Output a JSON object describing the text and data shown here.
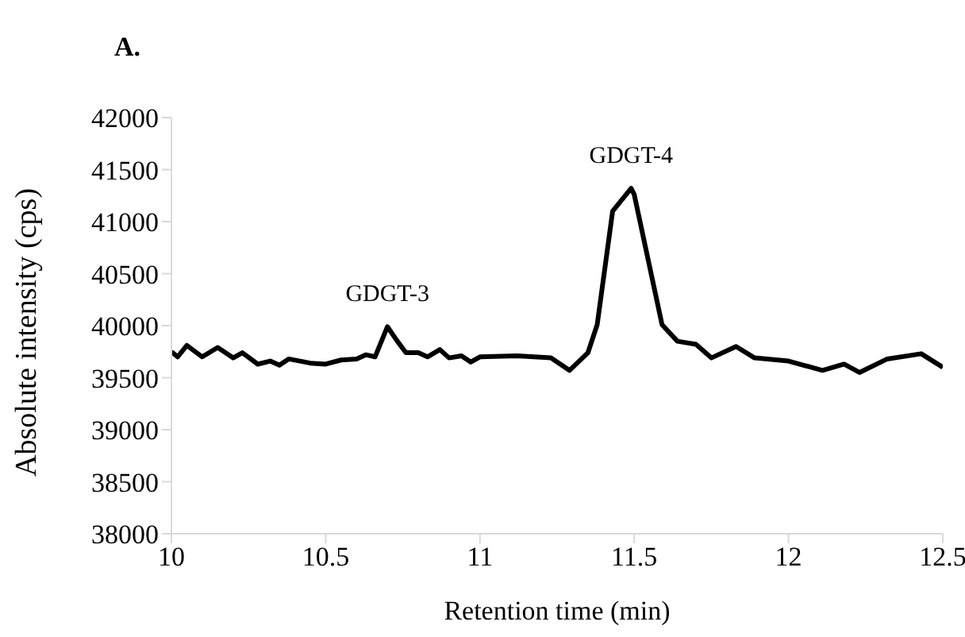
{
  "chart_data": {
    "type": "line",
    "title": "A.",
    "xlabel": "Retention time (min)",
    "ylabel": "Absolute intensity (cps)",
    "x": [
      10.0,
      10.02,
      10.05,
      10.1,
      10.15,
      10.2,
      10.23,
      10.28,
      10.32,
      10.35,
      10.38,
      10.45,
      10.5,
      10.55,
      10.6,
      10.63,
      10.66,
      10.7,
      10.73,
      10.76,
      10.8,
      10.83,
      10.87,
      10.9,
      10.94,
      10.97,
      11.0,
      11.12,
      11.23,
      11.29,
      11.35,
      11.38,
      11.43,
      11.49,
      11.5,
      11.59,
      11.64,
      11.7,
      11.75,
      11.83,
      11.89,
      12.0,
      12.11,
      12.18,
      12.23,
      12.32,
      12.43,
      12.5
    ],
    "series": [
      {
        "color": "#000000",
        "values": [
          39750,
          39700,
          39810,
          39700,
          39790,
          39690,
          39740,
          39630,
          39660,
          39620,
          39680,
          39640,
          39630,
          39670,
          39680,
          39720,
          39700,
          39990,
          39860,
          39740,
          39740,
          39700,
          39770,
          39690,
          39710,
          39650,
          39700,
          39710,
          39690,
          39570,
          39740,
          40010,
          41100,
          41320,
          41260,
          40010,
          39850,
          39820,
          39690,
          39800,
          39690,
          39660,
          39570,
          39630,
          39550,
          39680,
          39730,
          39600
        ]
      }
    ],
    "xlim": [
      10,
      12.5
    ],
    "xticks": [
      10,
      10.5,
      11,
      11.5,
      12,
      12.5
    ],
    "ylim": [
      38000,
      42000
    ],
    "yticks": [
      38000,
      38500,
      39000,
      39500,
      40000,
      40500,
      41000,
      41500,
      42000
    ],
    "grid": false,
    "legend": false,
    "marker": "none",
    "line_style": "solid",
    "annotations": [
      "GDGT-3",
      "GDGT-4"
    ]
  }
}
